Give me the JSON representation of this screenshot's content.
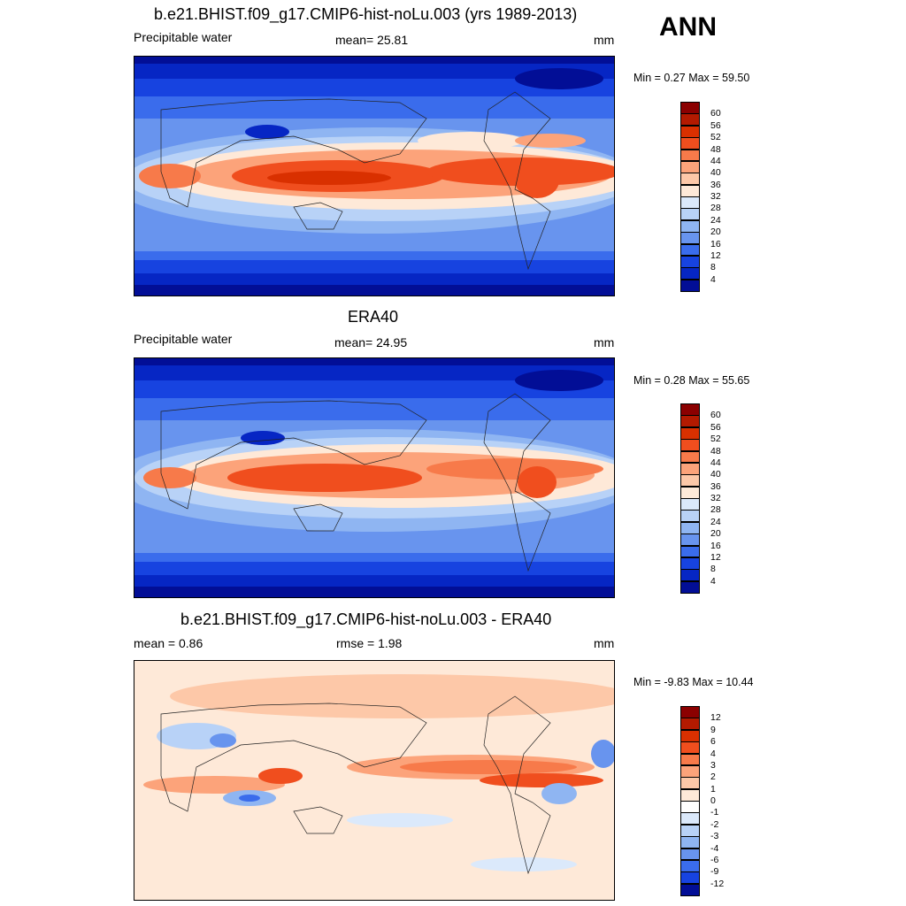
{
  "season": "ANN",
  "panels": [
    {
      "title": "b.e21.BHIST.f09_g17.CMIP6-hist-noLu.003 (yrs 1989-2013)",
      "left_label": "Precipitable water",
      "center_label": "mean=  25.81",
      "units": "mm",
      "minmax": "Min =   0.27 Max =  59.50",
      "colorbar_levels": [
        "60",
        "56",
        "52",
        "48",
        "44",
        "40",
        "36",
        "32",
        "28",
        "24",
        "20",
        "16",
        "12",
        "8",
        "4"
      ],
      "colorbar_colors": [
        "#8b0000",
        "#b31a00",
        "#d93000",
        "#f04e1e",
        "#f77a4a",
        "#fca37a",
        "#fdc8a8",
        "#fee9d8",
        "#dbe9fb",
        "#b8d2f7",
        "#8fb5f2",
        "#6894ee",
        "#3a6cec",
        "#1743e0",
        "#0626c4",
        "#020e96"
      ]
    },
    {
      "title": "ERA40",
      "left_label": "Precipitable water",
      "center_label": "mean=  24.95",
      "units": "mm",
      "minmax": "Min =   0.28 Max =  55.65",
      "colorbar_levels": [
        "60",
        "56",
        "52",
        "48",
        "44",
        "40",
        "36",
        "32",
        "28",
        "24",
        "20",
        "16",
        "12",
        "8",
        "4"
      ],
      "colorbar_colors": [
        "#8b0000",
        "#b31a00",
        "#d93000",
        "#f04e1e",
        "#f77a4a",
        "#fca37a",
        "#fdc8a8",
        "#fee9d8",
        "#dbe9fb",
        "#b8d2f7",
        "#8fb5f2",
        "#6894ee",
        "#3a6cec",
        "#1743e0",
        "#0626c4",
        "#020e96"
      ]
    },
    {
      "title": "b.e21.BHIST.f09_g17.CMIP6-hist-noLu.003 - ERA40",
      "left_label": "mean =   0.86",
      "center_label": "rmse =   1.98",
      "units": "mm",
      "minmax": "Min =  -9.83 Max =  10.44",
      "colorbar_levels": [
        "12",
        "9",
        "6",
        "4",
        "3",
        "2",
        "1",
        "0",
        "-1",
        "-2",
        "-3",
        "-4",
        "-6",
        "-9",
        "-12"
      ],
      "colorbar_colors": [
        "#8b0000",
        "#b31a00",
        "#d93000",
        "#f04e1e",
        "#f77a4a",
        "#fca37a",
        "#fdc8a8",
        "#fee9d8",
        "#ffffff",
        "#dbe9fb",
        "#b8d2f7",
        "#8fb5f2",
        "#6894ee",
        "#3a6cec",
        "#1743e0",
        "#020e96"
      ]
    }
  ]
}
